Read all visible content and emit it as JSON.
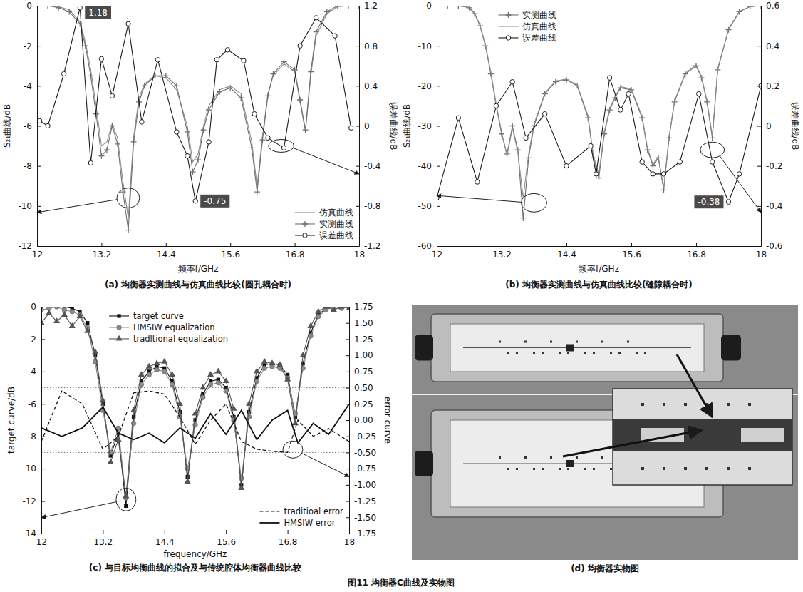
{
  "chart_data": [
    {
      "type": "line",
      "title": "(a) 均衡器实测曲线与仿真曲线比较(圆孔耦合时)",
      "x_label": "频率f/GHz",
      "y_label": "S₂₁曲线/dB",
      "y2_label": "误差曲线/dB",
      "xlim": [
        12,
        18
      ],
      "xticks": [
        12,
        13.2,
        14.4,
        15.6,
        16.8,
        18
      ],
      "ylim": [
        -12,
        0
      ],
      "yticks": [
        -12,
        -10,
        -8,
        -6,
        -4,
        -2,
        0
      ],
      "y2lim": [
        -1.2,
        1.2
      ],
      "y2ticks": [
        -1.2,
        -0.8,
        -0.4,
        0,
        0.4,
        0.8,
        1.2
      ],
      "grid": false,
      "legend": "bottom-right",
      "series": [
        {
          "name": "仿真曲线",
          "color": "#8c8c8c",
          "marker": "none",
          "line_style": "solid",
          "x": [
            12,
            12.2,
            12.4,
            12.6,
            12.8,
            12.9,
            13,
            13.1,
            13.2,
            13.3,
            13.4,
            13.5,
            13.6,
            13.7,
            13.8,
            13.9,
            14,
            14.2,
            14.4,
            14.6,
            14.8,
            14.9,
            15,
            15.1,
            15.2,
            15.4,
            15.6,
            15.8,
            16,
            16.1,
            16.2,
            16.3,
            16.4,
            16.6,
            16.8,
            16.9,
            17,
            17.1,
            17.2,
            17.4,
            17.6,
            17.8,
            18
          ],
          "values": [
            0,
            0,
            -0.05,
            -0.2,
            -0.8,
            -1.8,
            -3.2,
            -5.0,
            -7.0,
            -6.8,
            -5.9,
            -6.6,
            -8.8,
            -10.6,
            -6.5,
            -4.6,
            -3.9,
            -3.5,
            -3.6,
            -4.2,
            -6.0,
            -7.8,
            -7.4,
            -6.0,
            -5.0,
            -4.2,
            -4.0,
            -4.4,
            -6.8,
            -9.0,
            -6.5,
            -4.4,
            -3.5,
            -2.9,
            -3.3,
            -4.8,
            -6.3,
            -3.5,
            -1.5,
            -0.4,
            -0.05,
            0,
            0
          ]
        },
        {
          "name": "实测曲线",
          "color": "#6e6e6e",
          "marker": "plus",
          "line_style": "solid",
          "x": [
            12,
            12.2,
            12.4,
            12.6,
            12.8,
            12.9,
            13,
            13.1,
            13.2,
            13.3,
            13.4,
            13.5,
            13.6,
            13.7,
            13.8,
            13.9,
            14,
            14.2,
            14.4,
            14.6,
            14.8,
            14.9,
            15,
            15.1,
            15.2,
            15.4,
            15.6,
            15.8,
            16,
            16.1,
            16.2,
            16.3,
            16.4,
            16.6,
            16.8,
            16.9,
            17,
            17.1,
            17.2,
            17.4,
            17.6,
            17.8,
            18
          ],
          "values": [
            0,
            0,
            -0.1,
            -0.3,
            -0.9,
            -2.0,
            -3.5,
            -5.4,
            -7.5,
            -7.2,
            -6.0,
            -6.9,
            -9.3,
            -11.2,
            -6.8,
            -4.8,
            -4.0,
            -3.5,
            -3.5,
            -4.0,
            -6.3,
            -8.3,
            -7.7,
            -6.2,
            -5.2,
            -4.3,
            -4.1,
            -4.6,
            -7.1,
            -9.3,
            -6.7,
            -4.5,
            -3.4,
            -2.8,
            -3.2,
            -4.7,
            -6.2,
            -3.3,
            -1.3,
            -0.3,
            0,
            0,
            0
          ]
        },
        {
          "name": "误差曲线",
          "color": "#1a1a1a",
          "marker": "circle_open",
          "line_style": "solid",
          "axis": "y2",
          "x": [
            12.05,
            12.2,
            12.5,
            12.8,
            13,
            13.2,
            13.4,
            13.7,
            13.95,
            14.25,
            14.6,
            14.8,
            14.95,
            15.2,
            15.35,
            15.55,
            15.85,
            16.05,
            16.3,
            16.6,
            16.9,
            17.2,
            17.55,
            17.85
          ],
          "values": [
            0.05,
            0,
            0.52,
            1.18,
            -0.37,
            0.67,
            0.3,
            1.02,
            0.04,
            0.66,
            -0.06,
            -0.3,
            -0.75,
            -0.16,
            0.66,
            0.76,
            0.65,
            0.12,
            -0.12,
            -0.22,
            0.8,
            1.08,
            0.9,
            -0.02
          ]
        }
      ],
      "annotations": [
        {
          "text": "1.18",
          "x": 12.8,
          "y": 1.18,
          "axis": "y2"
        },
        {
          "text": "-0.75",
          "x": 14.95,
          "y": -0.75,
          "axis": "y2"
        }
      ]
    },
    {
      "type": "line",
      "title": "(b) 均衡器实测曲线与仿真曲线比较(缝隙耦合时)",
      "x_label": "频率f/GHz",
      "y_label": "S₂₁曲线/dB",
      "y2_label": "误差曲线/dB",
      "xlim": [
        12,
        18
      ],
      "xticks": [
        12,
        13.2,
        14.4,
        15.6,
        16.8,
        18
      ],
      "ylim": [
        -60,
        0
      ],
      "yticks": [
        -60,
        -50,
        -40,
        -30,
        -20,
        -10,
        0
      ],
      "y2lim": [
        -0.6,
        0.6
      ],
      "y2ticks": [
        -0.6,
        -0.4,
        -0.2,
        0,
        0.2,
        0.4,
        0.6
      ],
      "grid": false,
      "legend": "top-left",
      "series": [
        {
          "name": "实测曲线",
          "color": "#6e6e6e",
          "marker": "plus",
          "line_style": "solid",
          "x": [
            12,
            12.2,
            12.4,
            12.6,
            12.7,
            12.8,
            12.9,
            13,
            13.1,
            13.2,
            13.3,
            13.4,
            13.5,
            13.6,
            13.7,
            13.8,
            14,
            14.2,
            14.4,
            14.6,
            14.8,
            14.9,
            15,
            15.1,
            15.2,
            15.3,
            15.4,
            15.6,
            15.8,
            15.9,
            16,
            16.1,
            16.2,
            16.3,
            16.4,
            16.6,
            16.8,
            16.9,
            17,
            17.1,
            17.2,
            17.4,
            17.6,
            17.8,
            18
          ],
          "values": [
            0,
            0,
            0,
            -0.5,
            -2,
            -5,
            -10,
            -17,
            -25,
            -32,
            -37,
            -30,
            -36,
            -53,
            -38,
            -30,
            -22,
            -19,
            -18.5,
            -20,
            -28,
            -38,
            -43,
            -32,
            -26,
            -23,
            -20.5,
            -21,
            -28,
            -36,
            -40,
            -38,
            -46,
            -33,
            -24,
            -17,
            -15,
            -18,
            -24,
            -33,
            -16,
            -6,
            -1.5,
            -0.2,
            0
          ]
        },
        {
          "name": "仿真曲线",
          "color": "#8c8c8c",
          "marker": "none",
          "line_style": "solid",
          "x": [
            12,
            12.2,
            12.4,
            12.6,
            12.7,
            12.8,
            12.9,
            13,
            13.1,
            13.2,
            13.3,
            13.4,
            13.5,
            13.6,
            13.7,
            13.8,
            14,
            14.2,
            14.4,
            14.6,
            14.8,
            14.9,
            15,
            15.1,
            15.2,
            15.3,
            15.4,
            15.6,
            15.8,
            15.9,
            16,
            16.1,
            16.2,
            16.3,
            16.4,
            16.6,
            16.8,
            16.9,
            17,
            17.1,
            17.2,
            17.4,
            17.6,
            17.8,
            18
          ],
          "values": [
            0,
            0,
            0,
            -0.4,
            -1.8,
            -4.8,
            -9.6,
            -16.5,
            -24.5,
            -31.5,
            -37.5,
            -30.5,
            -36.5,
            -48,
            -37,
            -29.5,
            -21.8,
            -18.8,
            -18.3,
            -19.8,
            -27.5,
            -37.5,
            -42,
            -31.5,
            -25.6,
            -22.8,
            -20.2,
            -20.8,
            -27.6,
            -35.6,
            -39.6,
            -37.6,
            -45.5,
            -32.6,
            -23.8,
            -16.8,
            -14.8,
            -17.7,
            -23.6,
            -32.4,
            -15.7,
            -5.8,
            -1.4,
            -0.2,
            0
          ]
        },
        {
          "name": "误差曲线",
          "color": "#1a1a1a",
          "marker": "circle_open",
          "line_style": "solid",
          "axis": "y2",
          "x": [
            12,
            12.4,
            12.75,
            13.1,
            13.4,
            13.65,
            14,
            14.4,
            14.85,
            14.95,
            15.2,
            15.4,
            15.55,
            15.8,
            16,
            16.2,
            16.5,
            16.85,
            17.1,
            17.4,
            17.6,
            18
          ],
          "values": [
            -0.36,
            0.04,
            -0.28,
            0.1,
            0.22,
            -0.06,
            0.06,
            -0.2,
            -0.1,
            -0.24,
            0.24,
            0.08,
            0.16,
            -0.18,
            -0.24,
            -0.24,
            -0.18,
            0.16,
            -0.18,
            -0.38,
            -0.24,
            0.2
          ]
        }
      ],
      "annotations": [
        {
          "text": "-0.38",
          "x": 17.4,
          "y": -0.38,
          "axis": "y2"
        }
      ]
    },
    {
      "type": "line",
      "title": "(c) 与目标均衡曲线的拟合及与传统腔体均衡器曲线比较",
      "x_label": "frequency/GHz",
      "y_label": "target curve/dB",
      "y2_label": "error curve",
      "xlim": [
        12,
        18
      ],
      "xticks": [
        12,
        13.2,
        14.4,
        15.6,
        16.8,
        18
      ],
      "ylim": [
        -14,
        0
      ],
      "yticks": [
        -14,
        -12,
        -10,
        -8,
        -6,
        -4,
        -2,
        0
      ],
      "y2lim": [
        -1.75,
        1.75
      ],
      "y2ticks": [
        -1.75,
        {
          "value": -1.5,
          "label": "-1.50"
        },
        -1.25,
        {
          "value": -1,
          "label": "-1.00"
        },
        -0.75,
        {
          "value": -0.5,
          "label": "-0.50"
        },
        -0.25,
        {
          "value": 0,
          "label": "0.00"
        },
        0.25,
        {
          "value": 0.5,
          "label": "0.50"
        },
        0.75,
        {
          "value": 1,
          "label": "1.00"
        },
        1.25,
        {
          "value": 1.5,
          "label": "1.50"
        },
        1.75
      ],
      "y2_reference_lines": [
        0.5,
        -0.5
      ],
      "grid": false,
      "legend": "top",
      "series": [
        {
          "name": "target curve",
          "color": "#111111",
          "marker": "square",
          "line_style": "solid",
          "x": [
            12,
            12.15,
            12.3,
            12.45,
            12.6,
            12.75,
            12.9,
            13.05,
            13.2,
            13.35,
            13.5,
            13.65,
            13.8,
            13.95,
            14.1,
            14.25,
            14.4,
            14.55,
            14.7,
            14.85,
            15,
            15.15,
            15.3,
            15.45,
            15.6,
            15.75,
            15.9,
            16.05,
            16.2,
            16.35,
            16.5,
            16.65,
            16.8,
            16.95,
            17.1,
            17.25,
            17.4,
            17.55,
            17.7,
            17.85,
            18
          ],
          "values": [
            0,
            0,
            0,
            0,
            -0.1,
            -0.3,
            -1.0,
            -3.0,
            -6.0,
            -9.2,
            -7.8,
            -12.3,
            -6.8,
            -4.6,
            -4.0,
            -3.7,
            -3.8,
            -4.6,
            -6.5,
            -10.5,
            -7.0,
            -5.4,
            -4.6,
            -4.5,
            -5.0,
            -6.8,
            -11.0,
            -6.5,
            -4.4,
            -3.6,
            -3.5,
            -3.6,
            -4.2,
            -6.8,
            -3.5,
            -1.6,
            -0.5,
            -0.1,
            0,
            0,
            0
          ]
        },
        {
          "name": "HMSIW equalization",
          "color": "#8a8a8a",
          "marker": "circle",
          "line_style": "solid",
          "x": [
            12,
            12.15,
            12.3,
            12.45,
            12.6,
            12.75,
            12.9,
            13.05,
            13.2,
            13.35,
            13.5,
            13.65,
            13.8,
            13.95,
            14.1,
            14.25,
            14.4,
            14.55,
            14.7,
            14.85,
            15,
            15.15,
            15.3,
            15.45,
            15.6,
            15.75,
            15.9,
            16.05,
            16.2,
            16.35,
            16.5,
            16.65,
            16.8,
            16.95,
            17.1,
            17.25,
            17.4,
            17.55,
            17.7,
            17.85,
            18
          ],
          "values": [
            -0.2,
            -0.1,
            0,
            -0.2,
            -0.3,
            -0.5,
            -1.3,
            -3.4,
            -6.4,
            -9.0,
            -7.5,
            -11.8,
            -7.2,
            -4.8,
            -4.2,
            -3.9,
            -4.0,
            -4.8,
            -6.8,
            -10.0,
            -7.3,
            -5.6,
            -4.8,
            -4.7,
            -5.2,
            -7.0,
            -10.6,
            -6.8,
            -4.6,
            -3.8,
            -3.7,
            -3.8,
            -4.4,
            -6.6,
            -3.8,
            -1.8,
            -0.6,
            -0.2,
            0,
            -0.1,
            0
          ]
        },
        {
          "name": "tradltional equalization",
          "color": "#555555",
          "marker": "triangle",
          "line_style": "solid",
          "x": [
            12,
            12.15,
            12.3,
            12.45,
            12.6,
            12.75,
            12.9,
            13.05,
            13.2,
            13.35,
            13.5,
            13.65,
            13.8,
            13.95,
            14.1,
            14.25,
            14.4,
            14.55,
            14.7,
            14.85,
            15,
            15.15,
            15.3,
            15.45,
            15.6,
            15.75,
            15.9,
            16.05,
            16.2,
            16.35,
            16.5,
            16.65,
            16.8,
            16.95,
            17.1,
            17.25,
            17.4,
            17.55,
            17.7,
            17.85,
            18
          ],
          "values": [
            -1.0,
            -0.4,
            -0.9,
            -0.5,
            -1.2,
            -0.6,
            -1.5,
            -2.8,
            -5.8,
            -9.6,
            -8.2,
            -11.7,
            -6.4,
            -4.2,
            -3.7,
            -3.5,
            -3.4,
            -4.2,
            -6.0,
            -10.8,
            -6.6,
            -5.0,
            -4.2,
            -4.0,
            -4.6,
            -6.3,
            -11.2,
            -6.0,
            -4.0,
            -3.4,
            -3.5,
            -3.6,
            -4.5,
            -7.2,
            -3.0,
            -1.2,
            -0.3,
            0,
            -0.2,
            0,
            -0.1
          ]
        },
        {
          "name": "traditioal error",
          "color": "#111111",
          "marker": "none",
          "line_style": "dashed",
          "axis": "y2",
          "x": [
            12,
            12.4,
            12.8,
            13.2,
            13.5,
            13.8,
            14.1,
            14.4,
            14.7,
            15,
            15.3,
            15.6,
            15.9,
            16.2,
            16.5,
            16.8,
            17,
            17.3,
            17.6,
            18
          ],
          "values": [
            -0.33,
            0.45,
            0.25,
            -0.45,
            -0.25,
            0.42,
            0.45,
            0.4,
            0.05,
            -0.37,
            0,
            0.25,
            -0.33,
            -0.45,
            -0.48,
            -0.5,
            0,
            -0.25,
            -0.13,
            -0.33
          ]
        },
        {
          "name": "HMSIW error",
          "color": "#111111",
          "marker": "none",
          "line_style": "solid",
          "axis": "y2",
          "x": [
            12,
            12.4,
            12.8,
            13.2,
            13.5,
            13.8,
            14.1,
            14.4,
            14.7,
            15,
            15.3,
            15.6,
            15.9,
            16.2,
            16.5,
            16.8,
            17,
            17.3,
            17.6,
            18
          ],
          "values": [
            -0.12,
            -0.25,
            -0.12,
            0.2,
            -0.2,
            -0.3,
            -0.2,
            -0.35,
            -0.12,
            -0.28,
            0.1,
            -0.22,
            0.15,
            -0.3,
            0,
            0.15,
            -0.35,
            -0.05,
            -0.22,
            0.25
          ]
        }
      ]
    }
  ],
  "photo": {
    "title": "(d) 均衡器实物图"
  },
  "figure_caption": "图11 均衡器C曲线及实物图"
}
